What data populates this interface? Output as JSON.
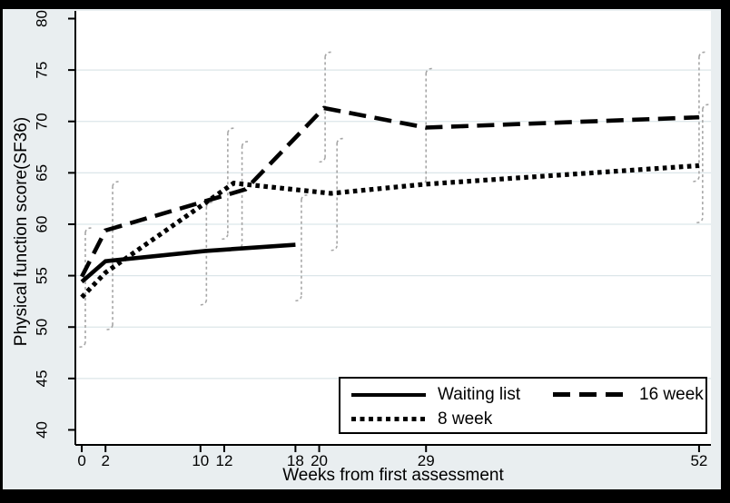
{
  "chart_data": {
    "type": "line",
    "title": "",
    "xlabel": "Weeks from first assessment",
    "ylabel": "Physical function score(SF36)",
    "xlim": [
      -0.54,
      53.0
    ],
    "ylim": [
      38.54,
      80.75
    ],
    "xticks": [
      0,
      2,
      10,
      12,
      18,
      20,
      29,
      52
    ],
    "yticks": [
      40,
      45,
      50,
      55,
      60,
      65,
      70,
      75,
      80
    ],
    "grid_values": [
      45,
      50,
      55,
      60,
      65,
      70,
      75
    ],
    "grid": true,
    "legend_position": "inside-bottom-right",
    "series": [
      {
        "name": "Waiting list",
        "style": "solid",
        "x": [
          0,
          2,
          10.4,
          18
        ],
        "y": [
          54.4,
          56.4,
          57.4,
          58.0
        ]
      },
      {
        "name": "16 week",
        "style": "dashed",
        "x": [
          0,
          2,
          13.8,
          20.4,
          29,
          52
        ],
        "y": [
          54.9,
          59.4,
          63.4,
          71.3,
          69.4,
          70.4
        ]
      },
      {
        "name": "8 week",
        "style": "dotted",
        "x": [
          0,
          2,
          12.8,
          21,
          29,
          52
        ],
        "y": [
          52.9,
          55.3,
          64.0,
          63.0,
          63.9,
          65.7
        ]
      }
    ],
    "error_bars": [
      {
        "x": 0.3,
        "low": 48.5,
        "high": 59.2
      },
      {
        "x": 2.6,
        "low": 50.2,
        "high": 63.7
      },
      {
        "x": 10.5,
        "low": 52.6,
        "high": 61.7
      },
      {
        "x": 12.3,
        "low": 59.0,
        "high": 68.9
      },
      {
        "x": 13.5,
        "low": 58.0,
        "high": 67.6
      },
      {
        "x": 18.5,
        "low": 53.0,
        "high": 62.4
      },
      {
        "x": 20.5,
        "low": 66.5,
        "high": 76.3
      },
      {
        "x": 21.5,
        "low": 57.9,
        "high": 67.9
      },
      {
        "x": 29.0,
        "low": 64.3,
        "high": 74.7
      },
      {
        "x": 52.0,
        "low": 64.6,
        "high": 76.3
      },
      {
        "x": 52.3,
        "low": 60.6,
        "high": 71.2
      }
    ]
  },
  "legend": {
    "items": [
      {
        "label": "Waiting list",
        "style": "solid"
      },
      {
        "label": "16 week",
        "style": "dashed"
      },
      {
        "label": "8 week",
        "style": "dotted"
      }
    ]
  },
  "colors": {
    "frame": "#000000",
    "graph_bg": "#e9eef0",
    "plot_bg": "#ffffff",
    "grid": "#dce6e9",
    "line": "#000000",
    "error_bar": "#a6a6a6",
    "text": "#000000"
  }
}
